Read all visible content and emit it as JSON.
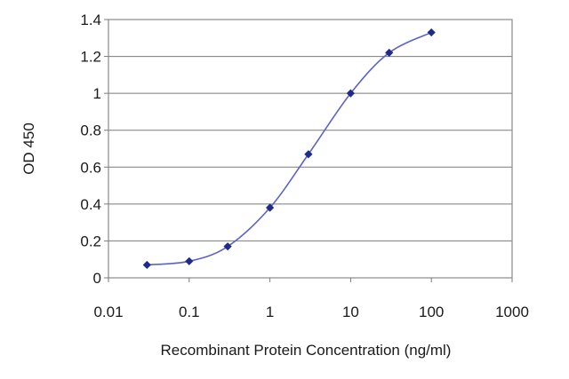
{
  "chart_data": {
    "type": "line",
    "title": "",
    "xlabel": "Recombinant Protein Concentration (ng/ml)",
    "ylabel": "OD 450",
    "x_scale": "log",
    "xlim": [
      0.01,
      1000
    ],
    "ylim": [
      0,
      1.4
    ],
    "x_ticks": [
      "0.01",
      "0.1",
      "1",
      "10",
      "100",
      "1000"
    ],
    "y_ticks": [
      "0",
      "0.2",
      "0.4",
      "0.6",
      "0.8",
      "1",
      "1.2",
      "1.4"
    ],
    "grid": "horizontal",
    "legend": "none",
    "series": [
      {
        "x": [
          0.03,
          0.1,
          0.3,
          1,
          3,
          10,
          30,
          100
        ],
        "y": [
          0.07,
          0.09,
          0.17,
          0.38,
          0.67,
          1.0,
          1.22,
          1.33
        ],
        "color": "#1f2a8c",
        "line_color": "#5b63c8"
      }
    ]
  }
}
